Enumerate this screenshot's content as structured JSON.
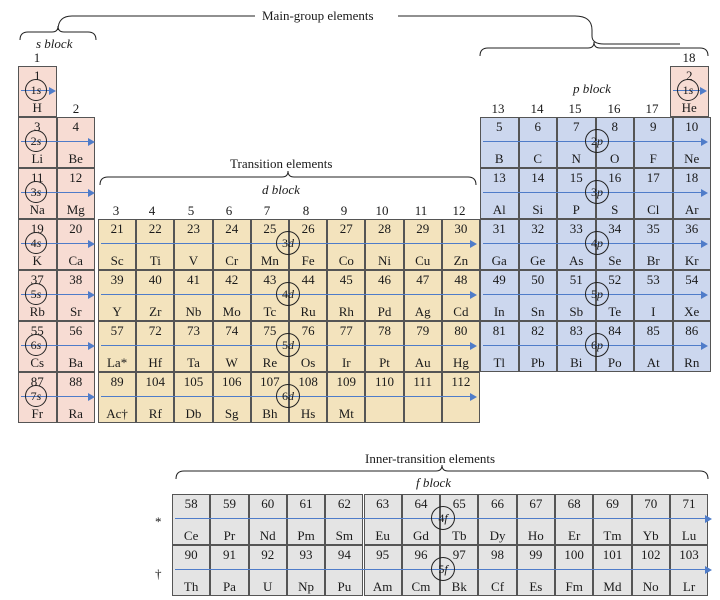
{
  "labels": {
    "main_group": "Main-group elements",
    "s_block": "s block",
    "p_block": "p block",
    "transition": "Transition elements",
    "d_block": "d block",
    "inner_transition": "Inner-transition elements",
    "f_block": "f block",
    "lanthanide_mark": "*",
    "actinide_mark": "†"
  },
  "groups": {
    "g1": "1",
    "g2": "2",
    "g3": "3",
    "g4": "4",
    "g5": "5",
    "g6": "6",
    "g7": "7",
    "g8": "8",
    "g9": "9",
    "g10": "10",
    "g11": "11",
    "g12": "12",
    "g13": "13",
    "g14": "14",
    "g15": "15",
    "g16": "16",
    "g17": "17",
    "g18": "18"
  },
  "orbitals": {
    "r1s": "1s",
    "r2s": "2s",
    "r3s": "3s",
    "r4s": "4s",
    "r5s": "5s",
    "r6s": "6s",
    "r7s": "7s",
    "he1s": "1s",
    "r2p": "2p",
    "r3p": "3p",
    "r4p": "4p",
    "r5p": "5p",
    "r6p": "6p",
    "r3d": "3d",
    "r4d": "4d",
    "r5d": "5d",
    "r6d": "6d",
    "r4f": "4f",
    "r5f": "5f"
  },
  "s_block": [
    [
      {
        "n": "1",
        "s": "H"
      }
    ],
    [
      {
        "n": "3",
        "s": "Li"
      },
      {
        "n": "4",
        "s": "Be"
      }
    ],
    [
      {
        "n": "11",
        "s": "Na"
      },
      {
        "n": "12",
        "s": "Mg"
      }
    ],
    [
      {
        "n": "19",
        "s": "K"
      },
      {
        "n": "20",
        "s": "Ca"
      }
    ],
    [
      {
        "n": "37",
        "s": "Rb"
      },
      {
        "n": "38",
        "s": "Sr"
      }
    ],
    [
      {
        "n": "55",
        "s": "Cs"
      },
      {
        "n": "56",
        "s": "Ba"
      }
    ],
    [
      {
        "n": "87",
        "s": "Fr"
      },
      {
        "n": "88",
        "s": "Ra"
      }
    ]
  ],
  "he": {
    "n": "2",
    "s": "He"
  },
  "p_block": [
    [
      {
        "n": "5",
        "s": "B"
      },
      {
        "n": "6",
        "s": "C"
      },
      {
        "n": "7",
        "s": "N"
      },
      {
        "n": "8",
        "s": "O"
      },
      {
        "n": "9",
        "s": "F"
      },
      {
        "n": "10",
        "s": "Ne"
      }
    ],
    [
      {
        "n": "13",
        "s": "Al"
      },
      {
        "n": "14",
        "s": "Si"
      },
      {
        "n": "15",
        "s": "P"
      },
      {
        "n": "16",
        "s": "S"
      },
      {
        "n": "17",
        "s": "Cl"
      },
      {
        "n": "18",
        "s": "Ar"
      }
    ],
    [
      {
        "n": "31",
        "s": "Ga"
      },
      {
        "n": "32",
        "s": "Ge"
      },
      {
        "n": "33",
        "s": "As"
      },
      {
        "n": "34",
        "s": "Se"
      },
      {
        "n": "35",
        "s": "Br"
      },
      {
        "n": "36",
        "s": "Kr"
      }
    ],
    [
      {
        "n": "49",
        "s": "In"
      },
      {
        "n": "50",
        "s": "Sn"
      },
      {
        "n": "51",
        "s": "Sb"
      },
      {
        "n": "52",
        "s": "Te"
      },
      {
        "n": "53",
        "s": "I"
      },
      {
        "n": "54",
        "s": "Xe"
      }
    ],
    [
      {
        "n": "81",
        "s": "Tl"
      },
      {
        "n": "82",
        "s": "Pb"
      },
      {
        "n": "83",
        "s": "Bi"
      },
      {
        "n": "84",
        "s": "Po"
      },
      {
        "n": "85",
        "s": "At"
      },
      {
        "n": "86",
        "s": "Rn"
      }
    ]
  ],
  "d_block": [
    [
      {
        "n": "21",
        "s": "Sc"
      },
      {
        "n": "22",
        "s": "Ti"
      },
      {
        "n": "23",
        "s": "V"
      },
      {
        "n": "24",
        "s": "Cr"
      },
      {
        "n": "25",
        "s": "Mn"
      },
      {
        "n": "26",
        "s": "Fe"
      },
      {
        "n": "27",
        "s": "Co"
      },
      {
        "n": "28",
        "s": "Ni"
      },
      {
        "n": "29",
        "s": "Cu"
      },
      {
        "n": "30",
        "s": "Zn"
      }
    ],
    [
      {
        "n": "39",
        "s": "Y"
      },
      {
        "n": "40",
        "s": "Zr"
      },
      {
        "n": "41",
        "s": "Nb"
      },
      {
        "n": "42",
        "s": "Mo"
      },
      {
        "n": "43",
        "s": "Tc"
      },
      {
        "n": "44",
        "s": "Ru"
      },
      {
        "n": "45",
        "s": "Rh"
      },
      {
        "n": "46",
        "s": "Pd"
      },
      {
        "n": "47",
        "s": "Ag"
      },
      {
        "n": "48",
        "s": "Cd"
      }
    ],
    [
      {
        "n": "57",
        "s": "La*"
      },
      {
        "n": "72",
        "s": "Hf"
      },
      {
        "n": "73",
        "s": "Ta"
      },
      {
        "n": "74",
        "s": "W"
      },
      {
        "n": "75",
        "s": "Re"
      },
      {
        "n": "76",
        "s": "Os"
      },
      {
        "n": "77",
        "s": "Ir"
      },
      {
        "n": "78",
        "s": "Pt"
      },
      {
        "n": "79",
        "s": "Au"
      },
      {
        "n": "80",
        "s": "Hg"
      }
    ],
    [
      {
        "n": "89",
        "s": "Ac†"
      },
      {
        "n": "104",
        "s": "Rf"
      },
      {
        "n": "105",
        "s": "Db"
      },
      {
        "n": "106",
        "s": "Sg"
      },
      {
        "n": "107",
        "s": "Bh"
      },
      {
        "n": "108",
        "s": "Hs"
      },
      {
        "n": "109",
        "s": "Mt"
      },
      {
        "n": "110",
        "s": ""
      },
      {
        "n": "111",
        "s": ""
      },
      {
        "n": "112",
        "s": ""
      }
    ]
  ],
  "f_block": [
    [
      {
        "n": "58",
        "s": "Ce"
      },
      {
        "n": "59",
        "s": "Pr"
      },
      {
        "n": "60",
        "s": "Nd"
      },
      {
        "n": "61",
        "s": "Pm"
      },
      {
        "n": "62",
        "s": "Sm"
      },
      {
        "n": "63",
        "s": "Eu"
      },
      {
        "n": "64",
        "s": "Gd"
      },
      {
        "n": "65",
        "s": "Tb"
      },
      {
        "n": "66",
        "s": "Dy"
      },
      {
        "n": "67",
        "s": "Ho"
      },
      {
        "n": "68",
        "s": "Er"
      },
      {
        "n": "69",
        "s": "Tm"
      },
      {
        "n": "70",
        "s": "Yb"
      },
      {
        "n": "71",
        "s": "Lu"
      }
    ],
    [
      {
        "n": "90",
        "s": "Th"
      },
      {
        "n": "91",
        "s": "Pa"
      },
      {
        "n": "92",
        "s": "U"
      },
      {
        "n": "93",
        "s": "Np"
      },
      {
        "n": "94",
        "s": "Pu"
      },
      {
        "n": "95",
        "s": "Am"
      },
      {
        "n": "96",
        "s": "Cm"
      },
      {
        "n": "97",
        "s": "Bk"
      },
      {
        "n": "98",
        "s": "Cf"
      },
      {
        "n": "99",
        "s": "Es"
      },
      {
        "n": "100",
        "s": "Fm"
      },
      {
        "n": "101",
        "s": "Md"
      },
      {
        "n": "102",
        "s": "No"
      },
      {
        "n": "103",
        "s": "Lr"
      }
    ]
  ]
}
